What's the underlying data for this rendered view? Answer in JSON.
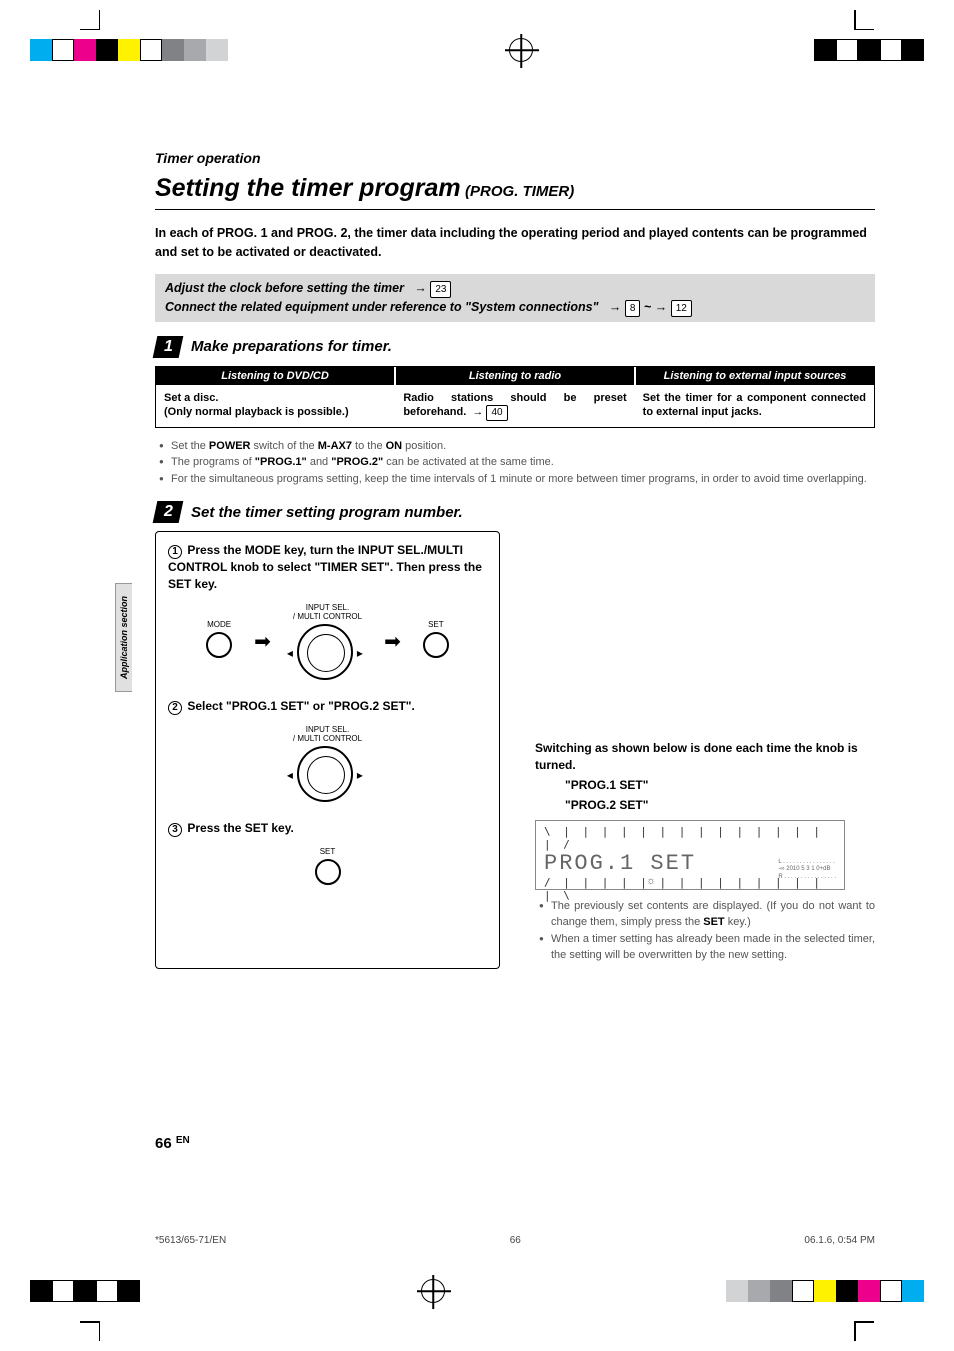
{
  "print": {
    "top_colors": [
      "#00aeef",
      "#ffffff",
      "#ec008c",
      "#000000",
      "#fff200",
      "#ffffff",
      "#808285",
      "#a7a9ac",
      "#d1d3d4"
    ],
    "top_colors_r": [
      "#000000",
      "#ffffff",
      "#000000",
      "#ffffff",
      "#000000"
    ],
    "bot_colors_l": [
      "#000000",
      "#ffffff",
      "#000000",
      "#ffffff",
      "#000000"
    ],
    "bot_colors_r": [
      "#d1d3d4",
      "#a7a9ac",
      "#808285",
      "#ffffff",
      "#fff200",
      "#000000",
      "#ec008c",
      "#ffffff",
      "#00aeef"
    ]
  },
  "breadcrumb": "Timer operation",
  "title_main": "Setting the timer program",
  "title_sub": "(PROG. TIMER)",
  "intro": "In each of PROG. 1 and PROG. 2, the timer data including the operating period and played contents can be programmed and set to be activated or deactivated.",
  "greybox": {
    "line1_a": "Adjust the clock before setting the timer",
    "line1_ref": "23",
    "line2_a": "Connect the related equipment under reference to \"System connections\"",
    "line2_ref1": "8",
    "line2_ref2": "12"
  },
  "step1": {
    "num": "1",
    "title": "Make preparations for timer.",
    "cols": {
      "h1": "Listening to DVD/CD",
      "h2": "Listening to radio",
      "h3": "Listening to external input sources",
      "b1": "Set a disc.\n(Only normal playback is possible.)",
      "b2a": "Radio stations should be preset beforehand.",
      "b2_ref": "40",
      "b3": "Set the timer for a component connected to external input jacks."
    },
    "bullets": [
      {
        "pre": "Set the ",
        "b1": "POWER",
        "mid1": " switch of the ",
        "b2": "M-AX7",
        "mid2": " to the ",
        "b3": "ON",
        "post": " position."
      },
      {
        "pre": "The programs of ",
        "b1": "\"PROG.1\"",
        "mid1": " and ",
        "b2": "\"PROG.2\"",
        "post": " can be activated at the same time."
      },
      {
        "pre": "For the simultaneous programs setting, keep the time intervals of 1 minute or more between timer programs, in order to avoid time overlapping."
      }
    ]
  },
  "step2": {
    "num": "2",
    "title": "Set the timer setting program number.",
    "sub1": "Press the MODE key, turn the INPUT SEL./MULTI CONTROL knob to select \"TIMER SET\". Then press the SET key.",
    "sub2": "Select \"PROG.1 SET\" or \"PROG.2 SET\".",
    "sub3": "Press the SET key.",
    "labels": {
      "mode": "MODE",
      "knob": "INPUT SEL.\n/ MULTI CONTROL",
      "set": "SET"
    }
  },
  "right": {
    "switch": "Switching as shown below is done each time the knob is turned.",
    "opt1": "\"PROG.1 SET\"",
    "opt2": "\"PROG.2 SET\"",
    "lcd_text": "PROG.1 SET",
    "lcd_meter": "L . . . . . . . . . . . . . . . .\n-∞ 2010 5  3  1  0+dB\nR . . . . . . . . . . . . . . . .",
    "b1_pre": "The previously set contents are displayed. (If you do not want to change them, simply press the ",
    "b1_bold": "SET",
    "b1_post": " key.)",
    "b2": "When a timer setting has already been made in the selected timer, the setting will be overwritten by the new setting."
  },
  "side_tab": "Application section",
  "page_num": "66",
  "page_lang": "EN",
  "footer": {
    "left": "*5613/65-71/EN",
    "mid": "66",
    "right": "06.1.6, 0:54 PM"
  }
}
